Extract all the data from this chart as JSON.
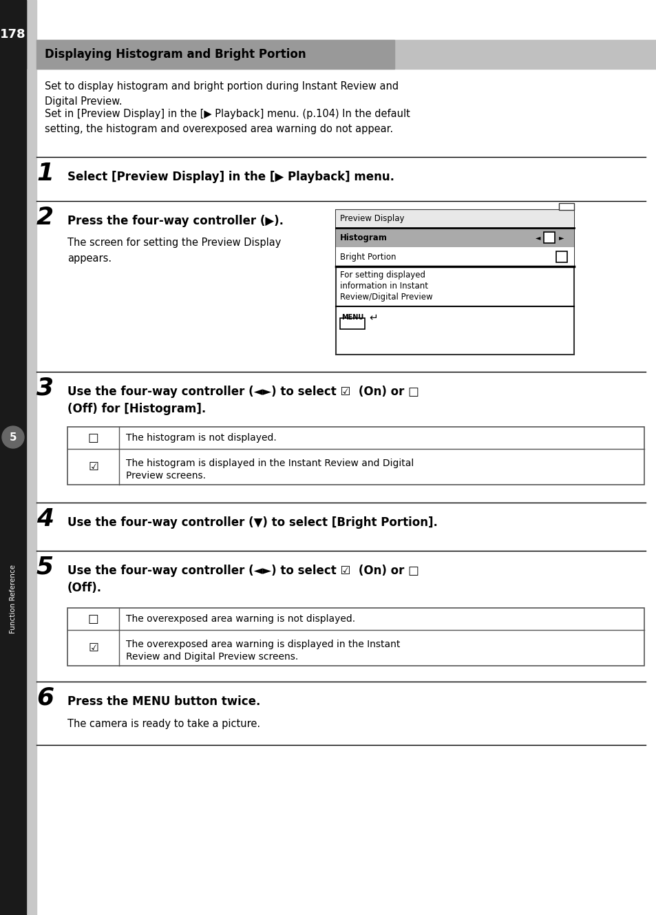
{
  "page_num": "178",
  "title": "Displaying Histogram and Bright Portion",
  "intro_line1": "Set to display histogram and bright portion during Instant Review and",
  "intro_line2": "Digital Preview.",
  "intro_line3": "Set in [Preview Display] in the [▶ Playback] menu. (p.104) In the default",
  "intro_line4": "setting, the histogram and overexposed area warning do not appear.",
  "step1_bold": "Select [Preview Display] in the [▶ Playback] menu.",
  "step2_bold": "Press the four-way controller (▶).",
  "step2_body1": "The screen for setting the Preview Display",
  "step2_body2": "appears.",
  "preview_display_title": "Preview Display",
  "preview_row1": "Histogram",
  "preview_row2": "Bright Portion",
  "preview_footer1": "For setting displayed",
  "preview_footer2": "information in Instant",
  "preview_footer3": "Review/Digital Preview",
  "preview_menu": "MENU",
  "step3_bold1": "Use the four-way controller (◄►) to select ☑  (On) or □",
  "step3_bold2": "(Off) for [Histogram].",
  "table1_row1_sym": "☑",
  "table1_row1_text1": "The histogram is displayed in the Instant Review and Digital",
  "table1_row1_text2": "Preview screens.",
  "table1_row2_sym": "□",
  "table1_row2_text": "The histogram is not displayed.",
  "step4_bold": "Use the four-way controller (▼) to select [Bright Portion].",
  "step5_bold1": "Use the four-way controller (◄►) to select ☑  (On) or □",
  "step5_bold2": "(Off).",
  "table2_row1_sym": "☑",
  "table2_row1_text1": "The overexposed area warning is displayed in the Instant",
  "table2_row1_text2": "Review and Digital Preview screens.",
  "table2_row2_sym": "□",
  "table2_row2_text": "The overexposed area warning is not displayed.",
  "step6_bold": "Press the MENU button twice.",
  "step6_body": "The camera is ready to take a picture.",
  "sidebar_num": "5",
  "sidebar_text": "Function Reference",
  "bg_color": "#ffffff",
  "sidebar_black": "#1a1a1a",
  "sidebar_gray": "#c8c8c8",
  "title_bg_dark": "#999999",
  "title_bg_light": "#c0c0c0",
  "preview_bg_title": "#e8e8e8",
  "preview_bg_selected": "#aaaaaa",
  "preview_border": "#333333",
  "table_border": "#555555",
  "circle_color": "#666666"
}
